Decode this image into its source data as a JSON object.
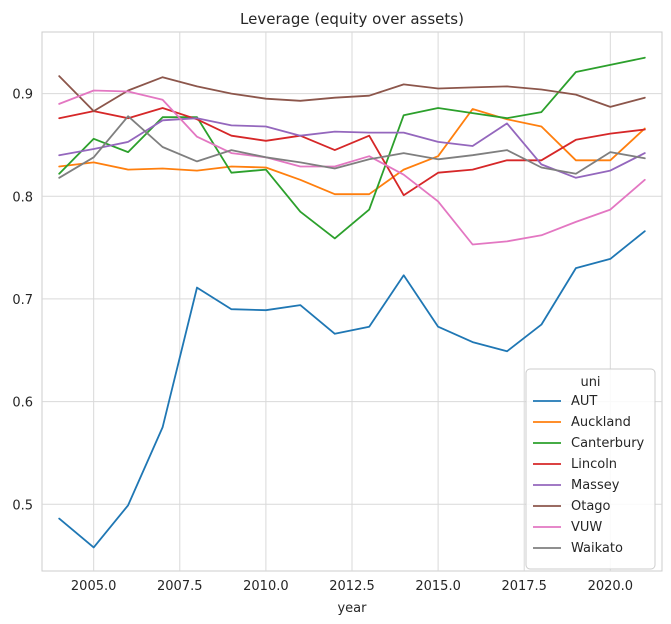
{
  "chart_data": {
    "type": "line",
    "title": "Leverage (equity over assets)",
    "xlabel": "year",
    "ylabel": "",
    "xlim": [
      2003.5,
      2021.5
    ],
    "ylim": [
      0.435,
      0.96
    ],
    "xticks": [
      2005.0,
      2007.5,
      2010.0,
      2012.5,
      2015.0,
      2017.5,
      2020.0
    ],
    "xtick_labels": [
      "2005.0",
      "2007.5",
      "2010.0",
      "2012.5",
      "2015.0",
      "2017.5",
      "2020.0"
    ],
    "yticks": [
      0.5,
      0.6,
      0.7,
      0.8,
      0.9
    ],
    "ytick_labels": [
      "0.5",
      "0.6",
      "0.7",
      "0.8",
      "0.9"
    ],
    "grid": true,
    "legend": {
      "title": "uni",
      "position": "lower-right"
    },
    "x": [
      2004,
      2005,
      2006,
      2007,
      2008,
      2009,
      2010,
      2011,
      2012,
      2013,
      2014,
      2015,
      2016,
      2017,
      2018,
      2019,
      2020,
      2021
    ],
    "series": [
      {
        "name": "AUT",
        "color": "#1f77b4",
        "values": [
          0.486,
          0.458,
          0.499,
          0.575,
          0.711,
          0.69,
          0.689,
          0.694,
          0.666,
          0.673,
          0.723,
          0.673,
          0.658,
          0.649,
          0.675,
          0.73,
          0.739,
          0.766
        ]
      },
      {
        "name": "Auckland",
        "color": "#ff7f0e",
        "values": [
          0.829,
          0.833,
          0.826,
          0.827,
          0.825,
          0.829,
          0.828,
          0.816,
          0.802,
          0.802,
          0.826,
          0.839,
          0.885,
          0.875,
          0.868,
          0.835,
          0.835,
          0.866
        ]
      },
      {
        "name": "Canterbury",
        "color": "#2ca02c",
        "values": [
          0.822,
          0.856,
          0.843,
          0.877,
          0.877,
          0.823,
          0.826,
          0.785,
          0.759,
          0.787,
          0.879,
          0.886,
          0.881,
          0.876,
          0.882,
          0.921,
          0.928,
          0.935
        ]
      },
      {
        "name": "Lincoln",
        "color": "#d62728",
        "values": [
          0.876,
          0.883,
          0.876,
          0.886,
          0.875,
          0.859,
          0.854,
          0.859,
          0.845,
          0.859,
          0.801,
          0.823,
          0.826,
          0.835,
          0.835,
          0.855,
          0.861,
          0.865
        ]
      },
      {
        "name": "Massey",
        "color": "#9467bd",
        "values": [
          0.84,
          0.846,
          0.853,
          0.874,
          0.876,
          0.869,
          0.868,
          0.859,
          0.863,
          0.862,
          0.862,
          0.853,
          0.849,
          0.871,
          0.831,
          0.818,
          0.825,
          0.842
        ]
      },
      {
        "name": "Otago",
        "color": "#8c564b",
        "values": [
          0.917,
          0.883,
          0.903,
          0.916,
          0.907,
          0.9,
          0.895,
          0.893,
          0.896,
          0.898,
          0.909,
          0.905,
          0.906,
          0.907,
          0.904,
          0.899,
          0.887,
          0.896
        ]
      },
      {
        "name": "VUW",
        "color": "#e377c2",
        "values": [
          0.89,
          0.903,
          0.902,
          0.894,
          0.858,
          0.842,
          0.838,
          0.829,
          0.829,
          0.839,
          0.821,
          0.795,
          0.753,
          0.756,
          0.762,
          0.775,
          0.787,
          0.816
        ]
      },
      {
        "name": "Waikato",
        "color": "#7f7f7f",
        "values": [
          0.818,
          0.838,
          0.878,
          0.848,
          0.834,
          0.845,
          0.838,
          0.833,
          0.827,
          0.836,
          0.842,
          0.836,
          0.84,
          0.845,
          0.828,
          0.822,
          0.843,
          0.837
        ]
      }
    ]
  }
}
